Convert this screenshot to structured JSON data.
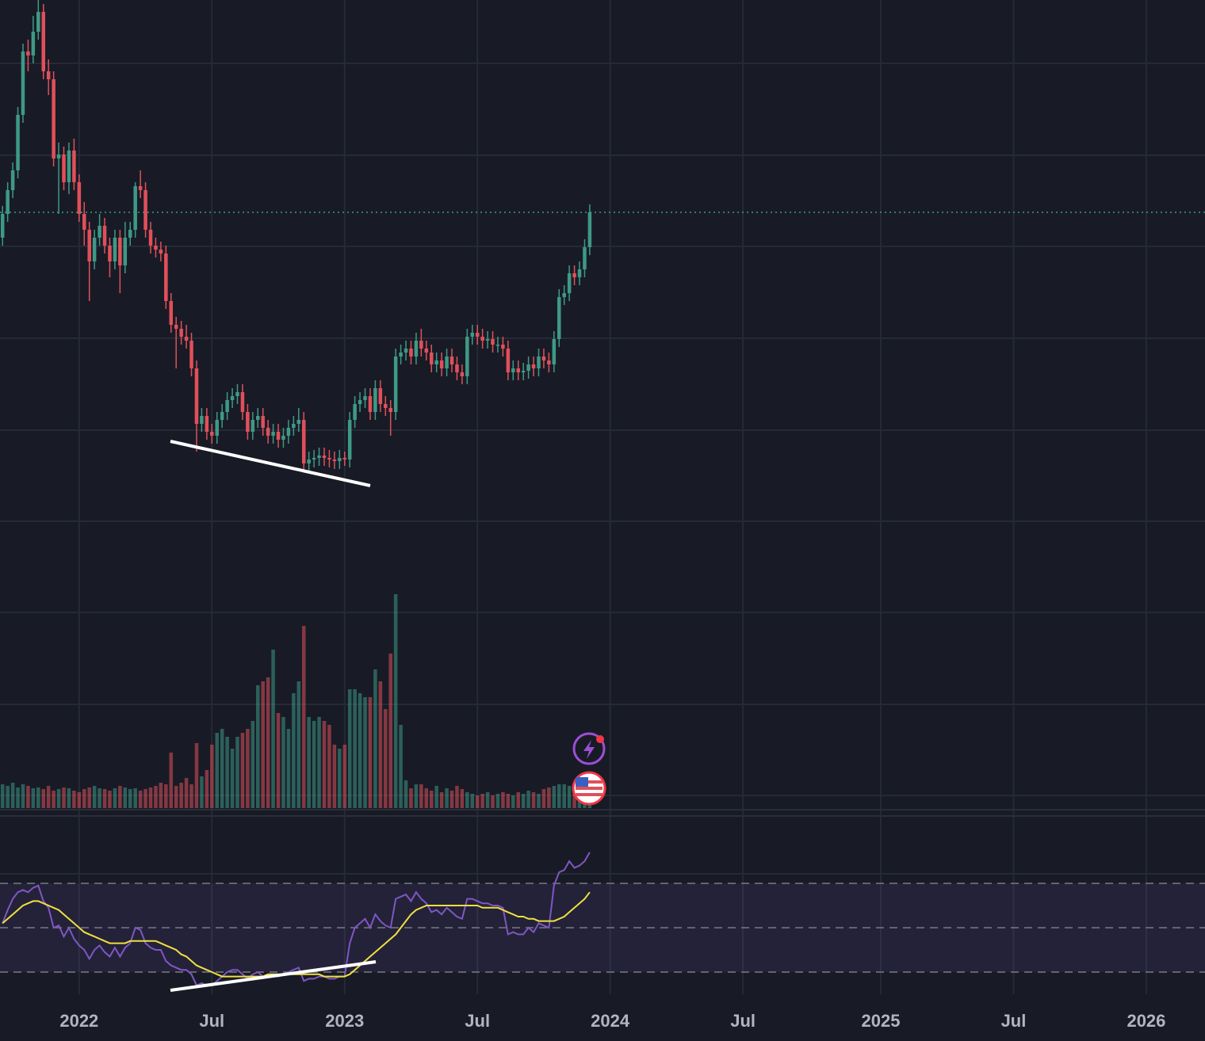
{
  "chart_data": {
    "type": "candlestick",
    "open": [
      400,
      430,
      460,
      485,
      555,
      635,
      630,
      660,
      685,
      610,
      600,
      500,
      505,
      470,
      510,
      470,
      430,
      410,
      370,
      400,
      415,
      390,
      370,
      400,
      365,
      400,
      410,
      465,
      460,
      410,
      390,
      385,
      380,
      320,
      290,
      285,
      275,
      270,
      235,
      165,
      175,
      155,
      150,
      170,
      180,
      195,
      200,
      205,
      180,
      155,
      170,
      175,
      160,
      150,
      155,
      145,
      150,
      160,
      165,
      170,
      115,
      120,
      122,
      125,
      122,
      120,
      118,
      122,
      120,
      170,
      190,
      195,
      200,
      180,
      210,
      190,
      185,
      180,
      250,
      255,
      260,
      250,
      270,
      260,
      255,
      240,
      245,
      235,
      250,
      240,
      230,
      225,
      275,
      280,
      275,
      270,
      272,
      265,
      265,
      260,
      230,
      235,
      230,
      232,
      240,
      235,
      250,
      245,
      240,
      272,
      325,
      330,
      355,
      350,
      360,
      388
    ],
    "high": [
      440,
      470,
      495,
      565,
      645,
      650,
      680,
      700,
      695,
      625,
      610,
      520,
      515,
      520,
      525,
      480,
      445,
      420,
      410,
      430,
      425,
      400,
      410,
      410,
      420,
      420,
      470,
      485,
      470,
      420,
      400,
      395,
      390,
      330,
      300,
      295,
      290,
      280,
      245,
      185,
      185,
      165,
      180,
      190,
      205,
      210,
      215,
      215,
      190,
      180,
      185,
      185,
      170,
      165,
      165,
      160,
      170,
      175,
      185,
      180,
      130,
      132,
      135,
      135,
      132,
      130,
      132,
      130,
      180,
      200,
      205,
      210,
      210,
      220,
      220,
      200,
      195,
      260,
      265,
      270,
      270,
      280,
      285,
      270,
      265,
      255,
      255,
      260,
      260,
      250,
      240,
      285,
      290,
      290,
      285,
      282,
      282,
      275,
      275,
      270,
      245,
      245,
      242,
      250,
      250,
      260,
      260,
      255,
      282,
      335,
      340,
      365,
      365,
      370,
      398,
      442
    ],
    "low": [
      390,
      420,
      450,
      475,
      545,
      610,
      620,
      650,
      600,
      580,
      490,
      430,
      460,
      455,
      460,
      420,
      390,
      320,
      360,
      390,
      380,
      350,
      360,
      330,
      355,
      390,
      400,
      450,
      400,
      380,
      375,
      370,
      310,
      280,
      235,
      265,
      260,
      225,
      130,
      155,
      145,
      140,
      140,
      160,
      170,
      185,
      190,
      170,
      145,
      145,
      160,
      150,
      140,
      140,
      135,
      135,
      140,
      150,
      155,
      105,
      105,
      110,
      112,
      112,
      110,
      108,
      108,
      112,
      110,
      160,
      180,
      185,
      170,
      170,
      180,
      175,
      150,
      170,
      240,
      245,
      240,
      240,
      250,
      245,
      230,
      230,
      225,
      225,
      230,
      220,
      215,
      215,
      265,
      265,
      260,
      260,
      255,
      255,
      250,
      220,
      220,
      220,
      220,
      222,
      225,
      225,
      235,
      230,
      230,
      262,
      315,
      320,
      340,
      340,
      350,
      378
    ],
    "close": [
      430,
      460,
      485,
      555,
      635,
      630,
      660,
      685,
      610,
      600,
      500,
      505,
      470,
      510,
      470,
      430,
      410,
      370,
      400,
      415,
      390,
      370,
      400,
      365,
      400,
      410,
      465,
      460,
      410,
      390,
      385,
      380,
      320,
      290,
      285,
      275,
      270,
      235,
      165,
      175,
      155,
      150,
      170,
      180,
      195,
      200,
      205,
      180,
      155,
      170,
      175,
      160,
      150,
      155,
      145,
      150,
      160,
      165,
      170,
      115,
      120,
      122,
      125,
      122,
      120,
      118,
      122,
      120,
      170,
      190,
      195,
      200,
      180,
      210,
      190,
      185,
      180,
      250,
      255,
      260,
      250,
      270,
      260,
      255,
      240,
      245,
      235,
      250,
      240,
      230,
      225,
      275,
      280,
      275,
      270,
      272,
      265,
      265,
      260,
      230,
      235,
      230,
      232,
      240,
      235,
      250,
      245,
      240,
      272,
      325,
      330,
      355,
      350,
      360,
      388,
      432
    ],
    "volume": [
      30,
      28,
      32,
      26,
      30,
      28,
      25,
      26,
      24,
      28,
      22,
      24,
      26,
      25,
      22,
      20,
      24,
      26,
      28,
      25,
      24,
      22,
      25,
      28,
      26,
      24,
      25,
      22,
      24,
      26,
      28,
      32,
      30,
      70,
      28,
      32,
      38,
      30,
      82,
      40,
      48,
      80,
      95,
      100,
      90,
      75,
      90,
      95,
      100,
      110,
      155,
      160,
      165,
      200,
      120,
      115,
      100,
      145,
      160,
      230,
      115,
      110,
      115,
      110,
      105,
      80,
      75,
      80,
      150,
      150,
      145,
      140,
      140,
      175,
      160,
      125,
      195,
      270,
      105,
      35,
      25,
      30,
      30,
      25,
      22,
      28,
      20,
      25,
      22,
      28,
      24,
      20,
      18,
      16,
      18,
      20,
      16,
      18,
      20,
      18,
      16,
      20,
      18,
      22,
      20,
      18,
      24,
      26,
      28,
      30,
      30,
      28,
      25,
      30,
      32,
      30
    ],
    "rsi": [
      52,
      58,
      63,
      66,
      67,
      66,
      68,
      69,
      62,
      59,
      50,
      51,
      46,
      50,
      45,
      42,
      40,
      36,
      40,
      42,
      39,
      37,
      41,
      37,
      41,
      43,
      50,
      49,
      43,
      41,
      40,
      40,
      35,
      33,
      32,
      31,
      31,
      29,
      24,
      25,
      24,
      24,
      26,
      28,
      30,
      31,
      31,
      29,
      27,
      29,
      30,
      28,
      28,
      29,
      28,
      29,
      30,
      31,
      32,
      26,
      27,
      27,
      28,
      28,
      27,
      27,
      28,
      28,
      43,
      50,
      52,
      54,
      50,
      56,
      53,
      51,
      50,
      63,
      64,
      65,
      62,
      66,
      63,
      61,
      57,
      58,
      56,
      59,
      57,
      55,
      54,
      63,
      63,
      62,
      61,
      61,
      60,
      60,
      59,
      47,
      48,
      47,
      47,
      50,
      48,
      52,
      51,
      50,
      69,
      75,
      76,
      80,
      77,
      78,
      80,
      84
    ],
    "rsi_ma": [
      52,
      54,
      56,
      58,
      60,
      61,
      62,
      62,
      61,
      60,
      59,
      58,
      56,
      54,
      52,
      50,
      48,
      47,
      46,
      45,
      44,
      43,
      43,
      43,
      43,
      44,
      44,
      44,
      44,
      44,
      44,
      43,
      42,
      41,
      40,
      38,
      37,
      35,
      33,
      32,
      31,
      30,
      29,
      28,
      28,
      28,
      28,
      28,
      28,
      28,
      28,
      28,
      29,
      29,
      29,
      29,
      29,
      29,
      29,
      29,
      29,
      29,
      29,
      28,
      28,
      28,
      28,
      28,
      29,
      31,
      33,
      35,
      37,
      39,
      41,
      43,
      45,
      47,
      50,
      53,
      56,
      58,
      59,
      60,
      60,
      60,
      60,
      60,
      60,
      60,
      60,
      60,
      60,
      60,
      59,
      59,
      59,
      59,
      58,
      57,
      56,
      55,
      55,
      54,
      54,
      53,
      53,
      53,
      53,
      54,
      55,
      57,
      59,
      61,
      63,
      66
    ],
    "up_color": "#3e9985",
    "down_color": "#e0505a",
    "rsi_color": "#7e57c2",
    "rsi_ma_color": "#f0e040",
    "ylim": [
      0,
      700
    ],
    "volume_ylim": [
      0,
      300
    ],
    "rsi_ylim": [
      0,
      100
    ],
    "rsi_levels": [
      70,
      50,
      30
    ],
    "xlim": [
      -0.5,
      235.5
    ],
    "xticks": [
      {
        "value": 15,
        "label": "2022"
      },
      {
        "value": 41,
        "label": "Jul"
      },
      {
        "value": 67,
        "label": "2023"
      },
      {
        "value": 93,
        "label": "Jul"
      },
      {
        "value": 119,
        "label": "2024"
      },
      {
        "value": 145,
        "label": "Jul"
      },
      {
        "value": 172,
        "label": "2025"
      },
      {
        "value": 198,
        "label": "Jul"
      },
      {
        "value": 224,
        "label": "2026"
      }
    ],
    "grid": true
  }
}
